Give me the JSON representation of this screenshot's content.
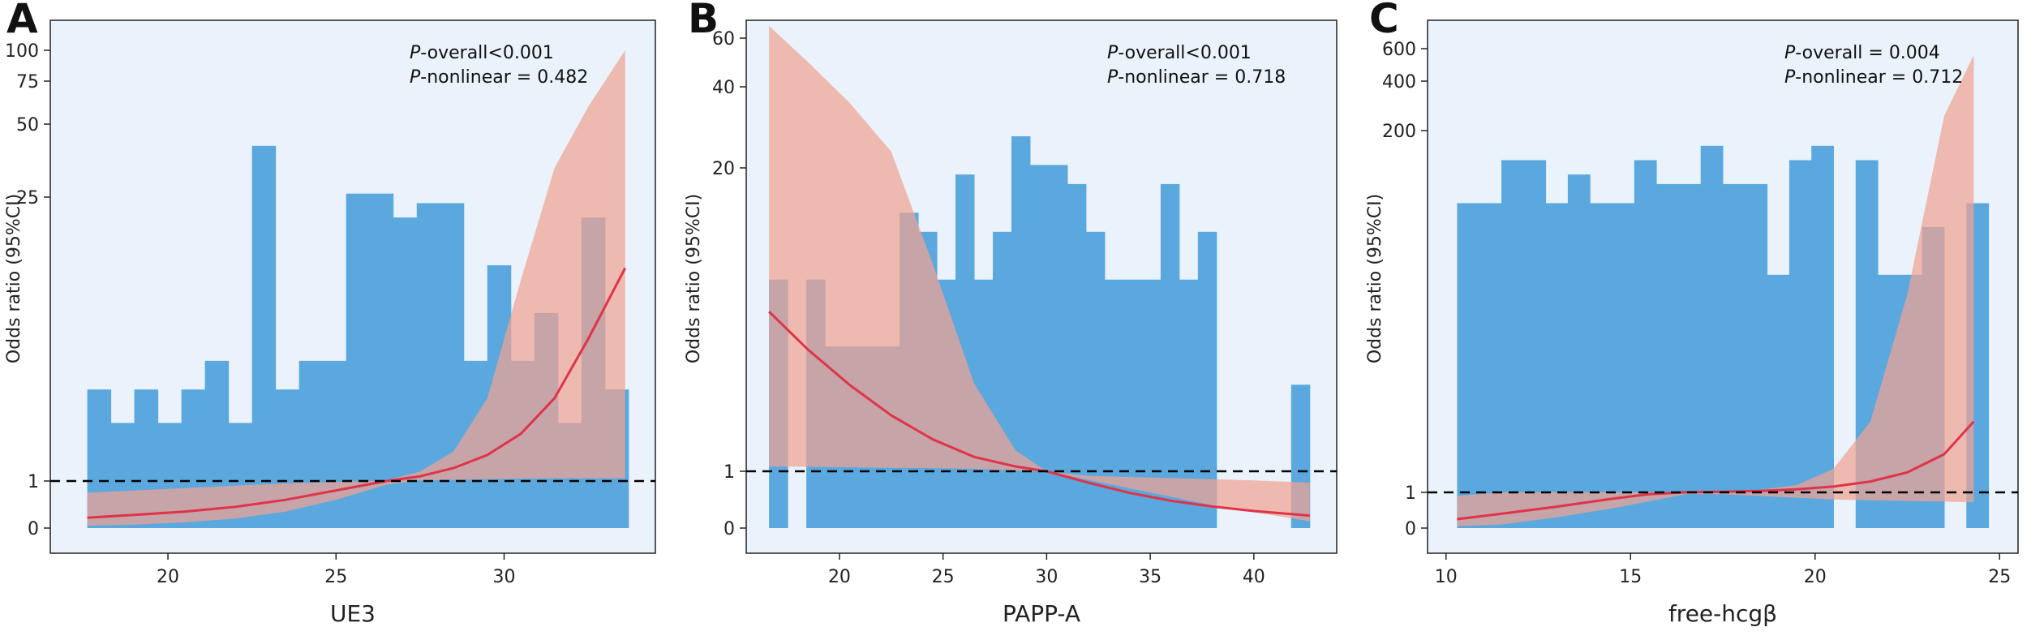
{
  "colors": {
    "background": "#eaf2fb",
    "histogram": "#5aa8de",
    "ci_band": "#f0a292",
    "curve": "#e0334a",
    "reference": "#000000"
  },
  "chart_data": [
    {
      "panel_letter": "A",
      "type": "restricted-cubic-spline-with-histogram",
      "xlabel": "UE3",
      "ylabel": "Odds ratio (95%CI)",
      "xlim": [
        16.5,
        34.5
      ],
      "x_ticks": [
        20,
        25,
        30
      ],
      "y_ticks": [
        {
          "label": "0",
          "value": 0
        },
        {
          "label": "1",
          "value": 1
        },
        {
          "label": "25",
          "value": 25
        },
        {
          "label": "50",
          "value": 50
        },
        {
          "label": "75",
          "value": 75
        },
        {
          "label": "100",
          "value": 100
        }
      ],
      "reference_line": 1,
      "annotation": {
        "p_overall": "P-overall<0.001",
        "p_nonlinear": "P-nonlinear = 0.482"
      },
      "histogram": {
        "edges": [
          17.6,
          18.3,
          19.0,
          19.7,
          20.4,
          21.1,
          21.8,
          22.5,
          23.2,
          23.9,
          24.6,
          25.3,
          26.0,
          26.7,
          27.4,
          28.1,
          28.8,
          29.5,
          30.2,
          30.9,
          31.6,
          32.3,
          33.0,
          33.7
        ],
        "values": [
          29,
          22,
          29,
          22,
          29,
          35,
          22,
          80,
          29,
          35,
          35,
          70,
          70,
          65,
          68,
          68,
          35,
          55,
          35,
          45,
          22,
          65,
          29
        ]
      },
      "curve": {
        "x": [
          17.6,
          19,
          20.5,
          22,
          23.5,
          25,
          26.5,
          27.5,
          28.5,
          29.5,
          30.5,
          31.5,
          32.5,
          33.6
        ],
        "or": [
          0.22,
          0.28,
          0.35,
          0.45,
          0.6,
          0.8,
          1.0,
          1.4,
          2.1,
          3.2,
          5.0,
          8.0,
          13.0,
          19.0
        ],
        "lower": [
          0.05,
          0.07,
          0.12,
          0.2,
          0.35,
          0.6,
          0.92,
          1.05,
          1.1,
          1.15,
          1.2,
          1.22,
          1.22,
          1.22
        ],
        "upper": [
          0.75,
          0.8,
          0.85,
          0.9,
          0.95,
          0.98,
          1.05,
          1.8,
          3.5,
          8.0,
          18.0,
          35.0,
          60.0,
          100.0
        ]
      }
    },
    {
      "panel_letter": "B",
      "type": "restricted-cubic-spline-with-histogram",
      "xlabel": "PAPP-A",
      "ylabel": "Odds ratio (95%CI)",
      "xlim": [
        15.5,
        44.0
      ],
      "x_ticks": [
        20,
        25,
        30,
        35,
        40
      ],
      "y_ticks": [
        {
          "label": "0",
          "value": 0
        },
        {
          "label": "1",
          "value": 1
        },
        {
          "label": "20",
          "value": 20
        },
        {
          "label": "40",
          "value": 40
        },
        {
          "label": "60",
          "value": 60
        }
      ],
      "reference_line": 1,
      "annotation": {
        "p_overall": "P-overall<0.001",
        "p_nonlinear": "P-nonlinear = 0.718"
      },
      "histogram": {
        "edges": [
          16.6,
          17.5,
          18.4,
          19.3,
          20.2,
          21.1,
          22.0,
          22.9,
          23.8,
          24.7,
          25.6,
          26.5,
          27.4,
          28.3,
          29.2,
          30.1,
          31.0,
          31.9,
          32.8,
          33.7,
          34.6,
          35.5,
          36.4,
          37.3,
          38.2,
          39.1,
          40.0,
          40.9,
          41.8,
          42.7
        ],
        "values": [
          52,
          0,
          52,
          38,
          38,
          38,
          38,
          66,
          62,
          52,
          74,
          52,
          62,
          82,
          76,
          76,
          72,
          62,
          52,
          52,
          52,
          72,
          52,
          62,
          0,
          0,
          0,
          0,
          30
        ],
        "gap_bins": [
          1
        ]
      },
      "curve": {
        "x": [
          16.6,
          18.5,
          20.5,
          22.5,
          24.5,
          26.5,
          28.5,
          30.0,
          32.0,
          34.0,
          36.0,
          38.0,
          40.0,
          42.7
        ],
        "or": [
          11.0,
          8.6,
          6.4,
          4.5,
          3.0,
          1.9,
          1.3,
          1.0,
          0.8,
          0.62,
          0.48,
          0.38,
          0.3,
          0.22
        ],
        "lower": [
          1.3,
          1.28,
          1.25,
          1.22,
          1.2,
          1.15,
          1.05,
          1.0,
          0.85,
          0.7,
          0.55,
          0.4,
          0.28,
          0.12
        ],
        "upper": [
          65.0,
          50.0,
          36.0,
          24.0,
          14.0,
          6.5,
          2.3,
          1.0,
          0.92,
          0.9,
          0.88,
          0.86,
          0.84,
          0.8
        ]
      }
    },
    {
      "panel_letter": "C",
      "type": "restricted-cubic-spline-with-histogram",
      "xlabel": "free-hcgβ",
      "ylabel": "Odds ratio (95%CI)",
      "xlim": [
        9.5,
        25.5
      ],
      "x_ticks": [
        10,
        15,
        20,
        25
      ],
      "y_ticks": [
        {
          "label": "0",
          "value": 0
        },
        {
          "label": "1",
          "value": 1
        },
        {
          "label": "200",
          "value": 200
        },
        {
          "label": "400",
          "value": 400
        },
        {
          "label": "600",
          "value": 600
        }
      ],
      "reference_line": 1,
      "annotation": {
        "p_overall": "P-overall = 0.004",
        "p_nonlinear": "P-nonlinear = 0.712"
      },
      "histogram": {
        "edges": [
          10.3,
          10.9,
          11.5,
          12.1,
          12.7,
          13.3,
          13.9,
          14.5,
          15.1,
          15.7,
          16.3,
          16.9,
          17.5,
          18.1,
          18.7,
          19.3,
          19.9,
          20.5,
          21.1,
          21.7,
          22.3,
          22.9,
          23.5,
          24.1,
          24.7
        ],
        "values": [
          68,
          68,
          77,
          77,
          68,
          74,
          68,
          68,
          77,
          72,
          72,
          80,
          72,
          72,
          53,
          77,
          80,
          0,
          77,
          53,
          53,
          63,
          0,
          68
        ],
        "gap_bins": [
          17,
          22
        ]
      },
      "curve": {
        "x": [
          10.3,
          11.5,
          13.0,
          14.5,
          15.5,
          16.5,
          17.5,
          18.5,
          19.5,
          20.5,
          21.5,
          22.5,
          23.5,
          24.3
        ],
        "or": [
          0.25,
          0.4,
          0.6,
          0.82,
          0.95,
          1.05,
          1.3,
          1.8,
          2.7,
          4.2,
          7.0,
          12.0,
          22.0,
          40.0
        ],
        "lower": [
          0.05,
          0.1,
          0.3,
          0.55,
          0.75,
          0.95,
          0.95,
          0.9,
          0.85,
          0.8,
          0.78,
          0.76,
          0.74,
          0.72
        ],
        "upper": [
          0.9,
          1.0,
          1.1,
          1.2,
          1.15,
          1.1,
          1.4,
          2.4,
          5.0,
          14.0,
          40.0,
          110.0,
          260.0,
          560.0
        ]
      }
    }
  ]
}
